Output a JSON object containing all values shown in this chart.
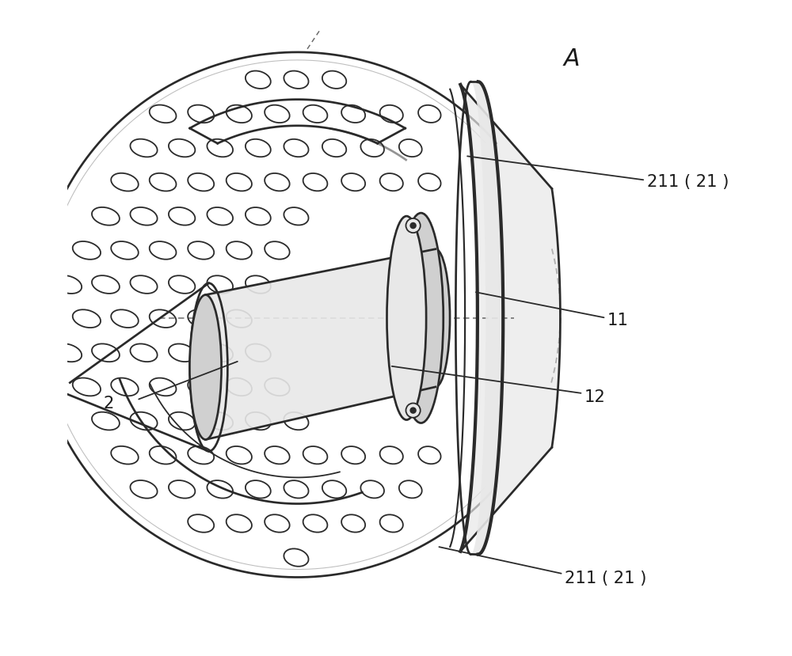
{
  "bg_color": "#ffffff",
  "line_color": "#2a2a2a",
  "fill_light": "#e8e8e8",
  "fill_mid": "#d0d0d0",
  "fill_dark": "#b8b8b8",
  "label_color": "#1a1a1a",
  "labels": {
    "A": {
      "text": "A",
      "fontsize": 20
    },
    "211_top": {
      "text": "211 ( 21 )",
      "fontsize": 14
    },
    "11": {
      "text": "11",
      "fontsize": 14
    },
    "12": {
      "text": "12",
      "fontsize": 14
    },
    "211_bot": {
      "text": "211 ( 21 )",
      "fontsize": 14
    },
    "2": {
      "text": "2",
      "fontsize": 14
    }
  },
  "figure_size": [
    9.26,
    7.68
  ],
  "dpi": 108
}
